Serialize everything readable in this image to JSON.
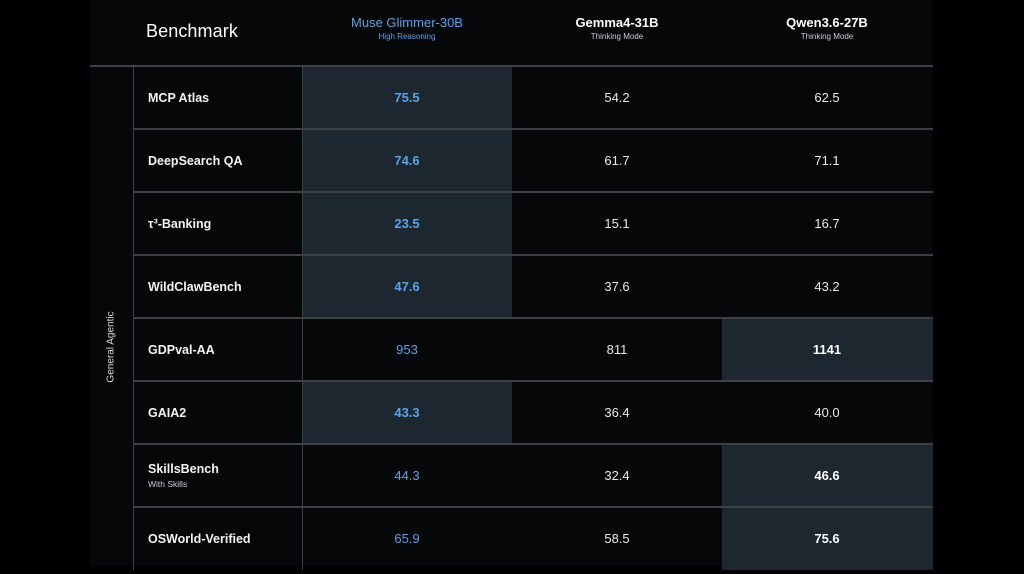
{
  "header": {
    "benchmark_label": "Benchmark",
    "columns": [
      {
        "name": "Muse Glimmer-30B",
        "sub": "High Reasoning"
      },
      {
        "name": "Gemma4-31B",
        "sub": "Thinking Mode"
      },
      {
        "name": "Qwen3.6-27B",
        "sub": "Thinking Mode"
      }
    ]
  },
  "group_label": "General Agentic",
  "rows": [
    {
      "name": "MCP Atlas",
      "sub": "",
      "values": [
        "75.5",
        "54.2",
        "62.5"
      ],
      "best": 0
    },
    {
      "name": "DeepSearch QA",
      "sub": "",
      "values": [
        "74.6",
        "61.7",
        "71.1"
      ],
      "best": 0
    },
    {
      "name": "τ³-Banking",
      "sub": "",
      "values": [
        "23.5",
        "15.1",
        "16.7"
      ],
      "best": 0
    },
    {
      "name": "WildClawBench",
      "sub": "",
      "values": [
        "47.6",
        "37.6",
        "43.2"
      ],
      "best": 0
    },
    {
      "name": "GDPval-AA",
      "sub": "",
      "values": [
        "953",
        "811",
        "1141"
      ],
      "best": 2
    },
    {
      "name": "GAIA2",
      "sub": "",
      "values": [
        "43.3",
        "36.4",
        "40.0"
      ],
      "best": 0
    },
    {
      "name": "SkillsBench",
      "sub": "With Skills",
      "values": [
        "44.3",
        "32.4",
        "46.6"
      ],
      "best": 2
    },
    {
      "name": "OSWorld-Verified",
      "sub": "",
      "values": [
        "65.9",
        "58.5",
        "75.6"
      ],
      "best": 2
    }
  ],
  "colors": {
    "highlight_blue": "#5aa3e8",
    "best_cell_bg": "#1c272f",
    "grid_line": "#3d4146",
    "background": "#060708"
  }
}
